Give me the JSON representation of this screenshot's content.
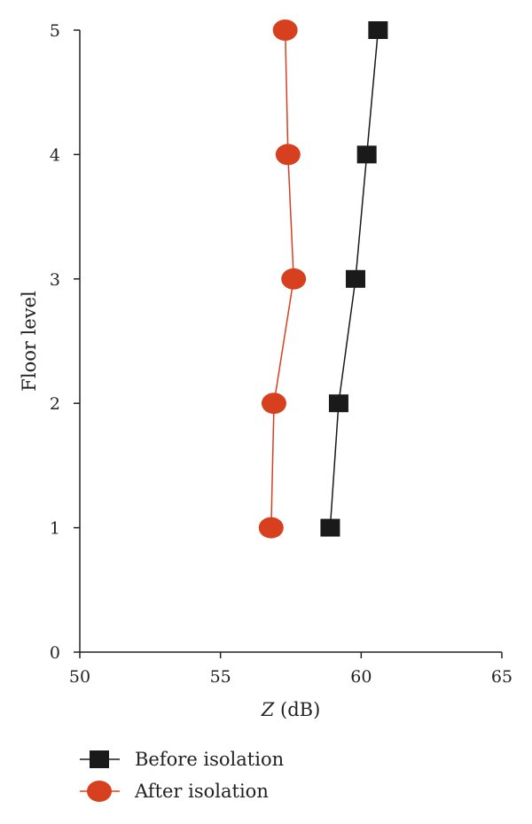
{
  "chart_data": {
    "type": "line",
    "title": "",
    "xlabel_italic": "Z",
    "xlabel_unit": " (dB)",
    "ylabel": "Floor level",
    "xlim": [
      50,
      65
    ],
    "ylim": [
      0,
      5
    ],
    "xticks": [
      50,
      55,
      60,
      65
    ],
    "yticks": [
      0,
      1,
      2,
      3,
      4,
      5
    ],
    "grid": false,
    "legend_position": "bottom-left",
    "series": [
      {
        "name": "Before isolation",
        "marker": "square",
        "color": "#1a1a1a",
        "points": [
          {
            "x": 58.9,
            "y": 1
          },
          {
            "x": 59.2,
            "y": 2
          },
          {
            "x": 59.8,
            "y": 3
          },
          {
            "x": 60.2,
            "y": 4
          },
          {
            "x": 60.6,
            "y": 5
          }
        ]
      },
      {
        "name": "After isolation",
        "marker": "circle",
        "color": "#d7401f",
        "points": [
          {
            "x": 56.8,
            "y": 1
          },
          {
            "x": 56.9,
            "y": 2
          },
          {
            "x": 57.6,
            "y": 3
          },
          {
            "x": 57.4,
            "y": 4
          },
          {
            "x": 57.3,
            "y": 5
          }
        ]
      }
    ]
  }
}
